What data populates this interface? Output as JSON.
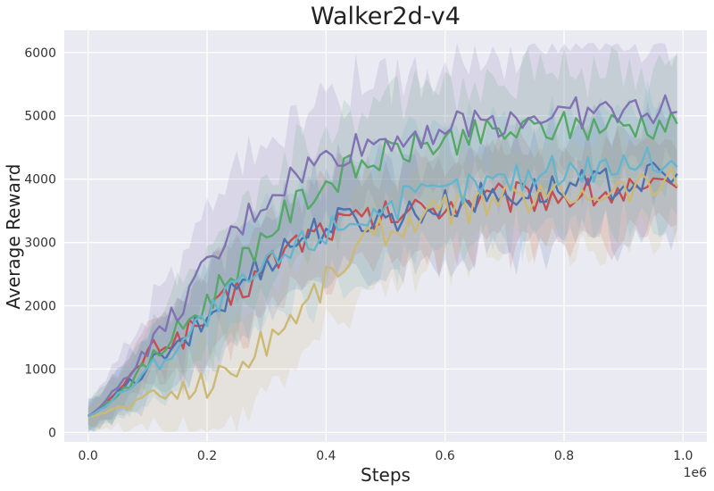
{
  "chart_data": {
    "type": "line",
    "title": "Walker2d-v4",
    "xlabel": "Steps",
    "ylabel": "Average Reward",
    "x_offset_label": "1e6",
    "x_range": [
      0,
      0.99
    ],
    "xlim": [
      -0.04,
      1.04
    ],
    "ylim": [
      -150,
      6350
    ],
    "x_ticks": [
      0.0,
      0.2,
      0.4,
      0.6,
      0.8,
      1.0
    ],
    "x_tick_labels": [
      "0.0",
      "0.2",
      "0.4",
      "0.6",
      "0.8",
      "1.0"
    ],
    "y_ticks": [
      0,
      1000,
      2000,
      3000,
      4000,
      5000,
      6000
    ],
    "y_tick_labels": [
      "0",
      "1000",
      "2000",
      "3000",
      "4000",
      "5000",
      "6000"
    ],
    "grid": true,
    "background": "#eaeaf2",
    "shaded_band": "variance band around each series",
    "series": [
      {
        "color": "#c44e52",
        "y": [
          250,
          300,
          390,
          500,
          560,
          620,
          720,
          830,
          1000,
          1120,
          1260,
          1330,
          1400,
          1440,
          1420,
          1480,
          1530,
          1600,
          1660,
          1720,
          1800,
          1870,
          1950,
          2040,
          2120,
          2200,
          2290,
          2370,
          2450,
          2540,
          2620,
          2700,
          2780,
          2860,
          2930,
          3000,
          3060,
          3110,
          3150,
          3190,
          3230,
          3260,
          3290,
          3310,
          3320,
          3330,
          3340,
          3350,
          3370,
          3380,
          3400,
          3420,
          3440,
          3460,
          3480,
          3500,
          3520,
          3540,
          3560,
          3580,
          3600,
          3620,
          3630,
          3640,
          3650,
          3660,
          3670,
          3670,
          3680,
          3690,
          3700,
          3700,
          3710,
          3710,
          3720,
          3730,
          3730,
          3740,
          3740,
          3750,
          3750,
          3760,
          3760,
          3760,
          3770,
          3770,
          3770,
          3780,
          3780,
          3780,
          3780,
          3790,
          3790,
          3790,
          3790,
          3790,
          3790,
          3790,
          3790,
          3790
        ],
        "band": 750
      },
      {
        "color": "#4c72b0",
        "y": [
          260,
          300,
          360,
          440,
          520,
          600,
          680,
          760,
          850,
          940,
          1030,
          1110,
          1190,
          1250,
          1200,
          1300,
          1400,
          1500,
          1600,
          1700,
          1800,
          1900,
          2000,
          2100,
          2200,
          2300,
          2400,
          2480,
          2560,
          2640,
          2720,
          2800,
          2860,
          2920,
          2980,
          3040,
          3090,
          3140,
          3190,
          3230,
          3270,
          3300,
          3320,
          3340,
          3350,
          3360,
          3360,
          3370,
          3380,
          3390,
          3400,
          3410,
          3430,
          3450,
          3470,
          3490,
          3510,
          3530,
          3550,
          3570,
          3590,
          3610,
          3630,
          3650,
          3670,
          3690,
          3710,
          3720,
          3740,
          3750,
          3760,
          3770,
          3780,
          3790,
          3800,
          3810,
          3820,
          3830,
          3840,
          3850,
          3860,
          3870,
          3880,
          3890,
          3900,
          3910,
          3920,
          3930,
          3940,
          3950,
          3960,
          3970,
          3980,
          3990,
          4000,
          4010,
          4020,
          4030,
          4040,
          4050
        ],
        "band": 850
      },
      {
        "color": "#55a868",
        "y": [
          250,
          310,
          380,
          460,
          540,
          620,
          700,
          790,
          880,
          980,
          1080,
          1180,
          1280,
          1380,
          1480,
          1580,
          1680,
          1780,
          1880,
          1980,
          2080,
          2180,
          2290,
          2400,
          2510,
          2620,
          2730,
          2840,
          2950,
          3050,
          3150,
          3250,
          3340,
          3430,
          3510,
          3590,
          3670,
          3740,
          3810,
          3870,
          3930,
          3990,
          4040,
          4090,
          4130,
          4170,
          4210,
          4250,
          4290,
          4330,
          4360,
          4390,
          4420,
          4450,
          4480,
          4500,
          4520,
          4540,
          4560,
          4580,
          4600,
          4620,
          4640,
          4660,
          4670,
          4680,
          4690,
          4700,
          4710,
          4720,
          4730,
          4740,
          4750,
          4760,
          4770,
          4780,
          4790,
          4800,
          4810,
          4820,
          4820,
          4830,
          4830,
          4840,
          4840,
          4850,
          4850,
          4860,
          4860,
          4860,
          4870,
          4870,
          4870,
          4880,
          4880,
          4880,
          4880,
          4880,
          4880,
          4880
        ],
        "band": 850
      },
      {
        "color": "#8172b2",
        "y": [
          250,
          320,
          400,
          500,
          600,
          720,
          840,
          960,
          1080,
          1200,
          1320,
          1440,
          1560,
          1680,
          1800,
          1920,
          2040,
          2160,
          2300,
          2440,
          2580,
          2700,
          2820,
          2940,
          3060,
          3180,
          3290,
          3400,
          3500,
          3600,
          3690,
          3780,
          3860,
          3930,
          4000,
          4060,
          4120,
          4180,
          4230,
          4280,
          4320,
          4360,
          4400,
          4440,
          4470,
          4500,
          4530,
          4560,
          4590,
          4610,
          4630,
          4650,
          4670,
          4690,
          4710,
          4730,
          4750,
          4770,
          4790,
          4800,
          4810,
          4830,
          4840,
          4860,
          4870,
          4890,
          4900,
          4910,
          4920,
          4930,
          4940,
          4950,
          4960,
          4970,
          4980,
          4990,
          5000,
          5010,
          5020,
          5030,
          5030,
          5040,
          5040,
          5050,
          5050,
          5060,
          5060,
          5060,
          5070,
          5070,
          5070,
          5080,
          5080,
          5090,
          5090,
          5100,
          5100,
          5100,
          5110,
          5110
        ],
        "band": 1000
      },
      {
        "color": "#ccb974",
        "y": [
          240,
          260,
          290,
          320,
          350,
          380,
          410,
          440,
          470,
          500,
          530,
          560,
          590,
          610,
          630,
          650,
          670,
          700,
          730,
          760,
          790,
          830,
          870,
          920,
          980,
          1040,
          1110,
          1190,
          1280,
          1370,
          1460,
          1550,
          1640,
          1730,
          1820,
          1910,
          2000,
          2100,
          2200,
          2300,
          2400,
          2500,
          2600,
          2700,
          2800,
          2900,
          2980,
          3050,
          3110,
          3160,
          3200,
          3240,
          3280,
          3310,
          3340,
          3370,
          3400,
          3430,
          3450,
          3470,
          3490,
          3510,
          3530,
          3550,
          3570,
          3590,
          3610,
          3630,
          3650,
          3660,
          3680,
          3690,
          3700,
          3710,
          3720,
          3730,
          3740,
          3750,
          3760,
          3770,
          3780,
          3790,
          3800,
          3810,
          3820,
          3830,
          3840,
          3850,
          3860,
          3870,
          3880,
          3890,
          3900,
          3910,
          3920,
          3930,
          3940,
          3950,
          3960,
          3970
        ],
        "band": 800
      },
      {
        "color": "#64b5cd",
        "y": [
          250,
          300,
          360,
          430,
          500,
          580,
          660,
          740,
          820,
          900,
          980,
          1060,
          1140,
          1220,
          1300,
          1380,
          1470,
          1560,
          1650,
          1740,
          1830,
          1920,
          2000,
          2080,
          2160,
          2240,
          2320,
          2400,
          2470,
          2540,
          2610,
          2680,
          2740,
          2800,
          2860,
          2920,
          2980,
          3040,
          3090,
          3140,
          3190,
          3240,
          3280,
          3320,
          3360,
          3400,
          3430,
          3460,
          3490,
          3520,
          3550,
          3580,
          3610,
          3640,
          3670,
          3700,
          3720,
          3740,
          3760,
          3780,
          3800,
          3820,
          3840,
          3860,
          3880,
          3900,
          3920,
          3940,
          3960,
          3980,
          4000,
          4020,
          4040,
          4060,
          4080,
          4100,
          4120,
          4130,
          4140,
          4150,
          4160,
          4170,
          4180,
          4190,
          4200,
          4210,
          4220,
          4230,
          4240,
          4250,
          4260,
          4270,
          4280,
          4290,
          4300,
          4300,
          4310,
          4310,
          4320,
          4320
        ],
        "band": 900
      }
    ]
  }
}
